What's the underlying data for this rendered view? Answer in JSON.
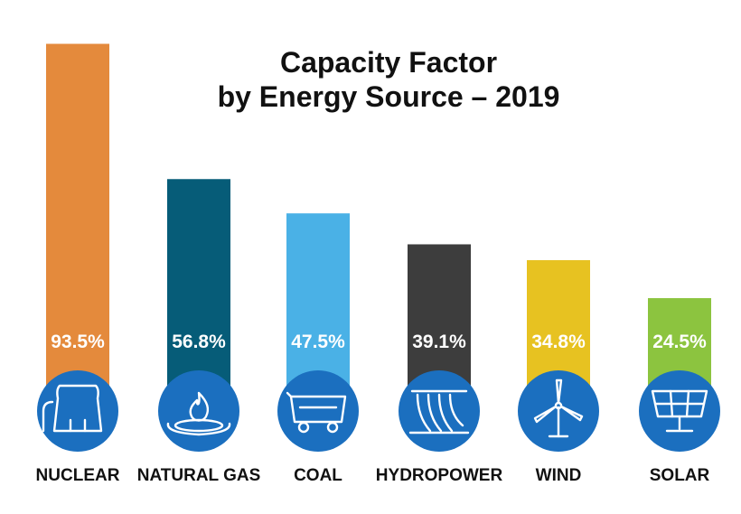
{
  "chart_data": {
    "type": "bar",
    "title": "Capacity Factor",
    "subtitle": "by Energy Source – 2019",
    "categories": [
      "NUCLEAR",
      "NATURAL GAS",
      "COAL",
      "HYDROPOWER",
      "WIND",
      "SOLAR"
    ],
    "values": [
      93.5,
      56.8,
      47.5,
      39.1,
      34.8,
      24.5
    ],
    "value_labels": [
      "93.5%",
      "56.8%",
      "47.5%",
      "39.1%",
      "34.8%",
      "24.5%"
    ],
    "colors": [
      "#E48A3C",
      "#065C78",
      "#4AB1E6",
      "#3D3D3D",
      "#E7C221",
      "#8CC43F"
    ],
    "icons": [
      "cooling-tower-icon",
      "gas-flame-icon",
      "coal-cart-icon",
      "dam-icon",
      "wind-turbine-icon",
      "solar-panel-icon"
    ],
    "icon_circle_color": "#1B6FBF",
    "ylim": [
      0,
      100
    ],
    "grid": false,
    "legend": "none"
  }
}
